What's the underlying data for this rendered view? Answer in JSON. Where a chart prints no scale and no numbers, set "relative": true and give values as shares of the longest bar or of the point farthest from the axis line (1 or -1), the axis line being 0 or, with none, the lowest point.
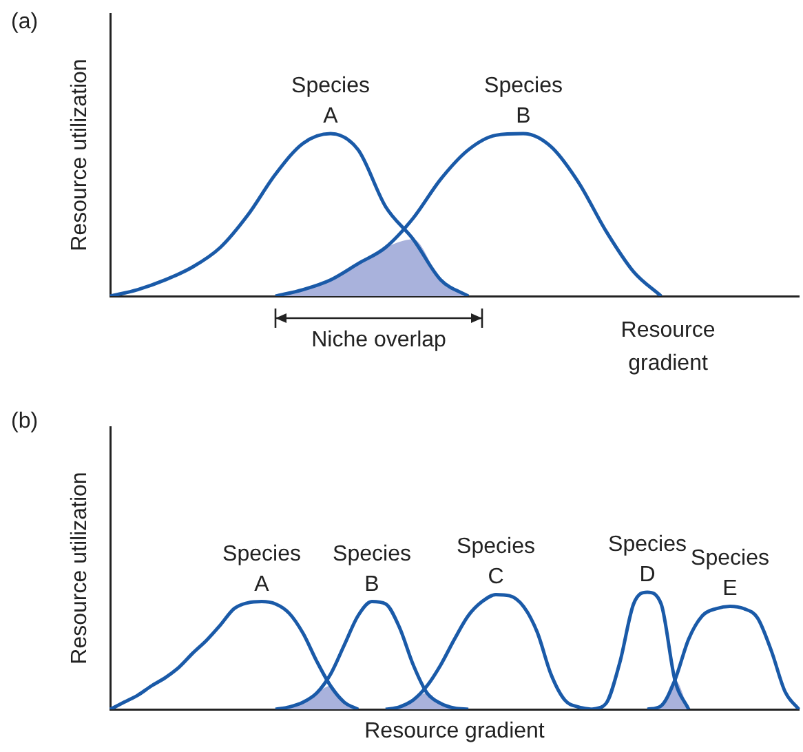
{
  "chart_data": [
    {
      "type": "line",
      "title": "(a)",
      "ylabel": "Resource utilization",
      "xlabel": "Resource gradient",
      "relative": true,
      "annotations": [
        "Niche overlap"
      ],
      "categories": [
        null,
        null,
        null,
        null,
        null,
        null,
        null,
        null,
        null,
        null,
        null,
        null,
        null,
        null,
        null,
        null,
        null,
        null,
        null,
        null,
        null,
        null,
        null,
        null,
        null,
        null
      ],
      "series": [
        {
          "name": "Species A",
          "color": "#1a5aa8",
          "values": [
            0,
            0.04,
            0.1,
            0.18,
            0.3,
            0.5,
            0.75,
            0.94,
            1,
            0.9,
            0.55,
            0.35,
            0.1,
            0,
            null,
            null,
            null,
            null,
            null,
            null,
            null,
            null,
            null,
            null,
            null,
            null
          ]
        },
        {
          "name": "Species B",
          "color": "#1a5aa8",
          "values": [
            null,
            null,
            null,
            null,
            null,
            null,
            0,
            0.04,
            0.1,
            0.2,
            0.3,
            0.48,
            0.72,
            0.9,
            0.99,
            1,
            0.92,
            0.7,
            0.4,
            0.15,
            0,
            null,
            null,
            null,
            null,
            null
          ]
        },
        {
          "type": "area",
          "color": "#a9b2dc",
          "values": [
            null,
            null,
            null,
            null,
            null,
            null,
            0,
            0.04,
            0.1,
            0.2,
            0.3,
            0.35,
            0.1,
            0,
            null,
            null,
            null,
            null,
            null,
            null,
            null,
            null,
            null,
            null,
            null,
            null
          ]
        }
      ]
    },
    {
      "type": "line",
      "title": "(b)",
      "ylabel": "Resource utilization",
      "xlabel": "Resource gradient",
      "relative": true,
      "categories": [
        null,
        null,
        null,
        null,
        null,
        null,
        null,
        null,
        null,
        null,
        null,
        null,
        null,
        null,
        null,
        null,
        null,
        null,
        null,
        null,
        null,
        null,
        null,
        null,
        null,
        null,
        null,
        null,
        null,
        null,
        null,
        null,
        null,
        null,
        null,
        null,
        null,
        null,
        null,
        null,
        null,
        null,
        null,
        null,
        null,
        null,
        null,
        null,
        null,
        null,
        null
      ],
      "series": [
        {
          "name": "Species A",
          "color": "#1a5aa8",
          "values": [
            0,
            0.06,
            0.12,
            0.2,
            0.27,
            0.36,
            0.48,
            0.59,
            0.72,
            0.86,
            0.91,
            0.92,
            0.9,
            0.82,
            0.65,
            0.41,
            0.2,
            0.06,
            0,
            null,
            null,
            null,
            null,
            null,
            null,
            null,
            null,
            null,
            null,
            null,
            null,
            null,
            null,
            null,
            null,
            null,
            null,
            null,
            null,
            null,
            null,
            null,
            null,
            null,
            null,
            null,
            null,
            null,
            null,
            null,
            null
          ]
        },
        {
          "name": "Species B",
          "color": "#1a5aa8",
          "values": [
            null,
            null,
            null,
            null,
            null,
            null,
            null,
            null,
            null,
            null,
            null,
            null,
            0,
            0.02,
            0.06,
            0.14,
            0.3,
            0.55,
            0.8,
            0.92,
            0.9,
            0.7,
            0.38,
            0.14,
            0.05,
            0.01,
            0,
            null,
            null,
            null,
            null,
            null,
            null,
            null,
            null,
            null,
            null,
            null,
            null,
            null,
            null,
            null,
            null,
            null,
            null,
            null,
            null,
            null,
            null,
            null,
            null
          ]
        },
        {
          "name": "Species C",
          "color": "#1a5aa8",
          "values": [
            null,
            null,
            null,
            null,
            null,
            null,
            null,
            null,
            null,
            null,
            null,
            null,
            null,
            null,
            null,
            null,
            null,
            null,
            null,
            null,
            0,
            0.02,
            0.08,
            0.2,
            0.38,
            0.6,
            0.8,
            0.92,
            0.98,
            0.97,
            0.88,
            0.66,
            0.3,
            0.08,
            0.02,
            0,
            null,
            null,
            null,
            null,
            null,
            null,
            null,
            null,
            null,
            null,
            null,
            null,
            null,
            null,
            null
          ]
        },
        {
          "name": "Species D",
          "color": "#1a5aa8",
          "values": [
            null,
            null,
            null,
            null,
            null,
            null,
            null,
            null,
            null,
            null,
            null,
            null,
            null,
            null,
            null,
            null,
            null,
            null,
            null,
            null,
            null,
            null,
            null,
            null,
            null,
            null,
            null,
            null,
            null,
            null,
            null,
            null,
            null,
            null,
            null,
            0,
            0.05,
            0.4,
            0.9,
            1,
            0.9,
            0.25,
            0,
            null,
            null,
            null,
            null,
            null,
            null,
            null,
            null
          ]
        },
        {
          "name": "Species E",
          "color": "#1a5aa8",
          "values": [
            null,
            null,
            null,
            null,
            null,
            null,
            null,
            null,
            null,
            null,
            null,
            null,
            null,
            null,
            null,
            null,
            null,
            null,
            null,
            null,
            null,
            null,
            null,
            null,
            null,
            null,
            null,
            null,
            null,
            null,
            null,
            null,
            null,
            null,
            null,
            null,
            null,
            null,
            null,
            0,
            0.03,
            0.25,
            0.6,
            0.8,
            0.86,
            0.88,
            0.86,
            0.78,
            0.5,
            0.15,
            0
          ]
        },
        {
          "type": "area",
          "color": "#a9b2dc",
          "values": [
            null,
            null,
            null,
            null,
            null,
            null,
            null,
            null,
            null,
            null,
            null,
            null,
            0,
            0.02,
            0.06,
            0.14,
            0.2,
            0.06,
            0,
            null,
            null,
            null,
            null,
            null,
            null,
            null,
            null,
            null,
            null,
            null,
            null,
            null,
            null,
            null,
            null,
            null,
            null,
            null,
            null,
            null,
            null,
            null,
            null,
            null,
            null,
            null,
            null,
            null,
            null,
            null,
            null
          ]
        },
        {
          "type": "area",
          "color": "#a9b2dc",
          "values": [
            null,
            null,
            null,
            null,
            null,
            null,
            null,
            null,
            null,
            null,
            null,
            null,
            null,
            null,
            null,
            null,
            null,
            null,
            null,
            null,
            0,
            0.02,
            0.08,
            0.14,
            0.05,
            0.01,
            0,
            null,
            null,
            null,
            null,
            null,
            null,
            null,
            null,
            null,
            null,
            null,
            null,
            null,
            null,
            null,
            null,
            null,
            null,
            null,
            null,
            null,
            null,
            null,
            null
          ]
        },
        {
          "type": "area",
          "color": "#a9b2dc",
          "values": [
            null,
            null,
            null,
            null,
            null,
            null,
            null,
            null,
            null,
            null,
            null,
            null,
            null,
            null,
            null,
            null,
            null,
            null,
            null,
            null,
            null,
            null,
            null,
            null,
            null,
            null,
            null,
            null,
            null,
            null,
            null,
            null,
            null,
            null,
            null,
            null,
            null,
            null,
            null,
            0,
            0.03,
            0.25,
            0,
            null,
            null,
            null,
            null,
            null,
            null,
            null,
            null
          ]
        }
      ]
    }
  ]
}
